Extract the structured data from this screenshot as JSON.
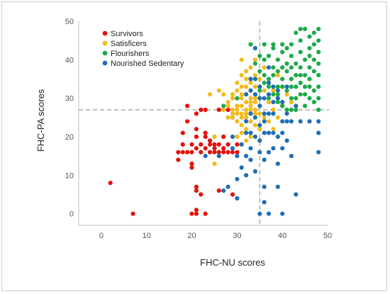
{
  "chart_data": {
    "type": "scatter",
    "xlabel": "FHC-NU scores",
    "ylabel": "FHC-PA scores",
    "xlim": [
      -5,
      50
    ],
    "ylim": [
      -3,
      50
    ],
    "x_ticks": [
      "0",
      "10",
      "20",
      "30",
      "40",
      "50"
    ],
    "y_ticks": [
      "0",
      "10",
      "20",
      "30",
      "40",
      "50"
    ],
    "reference_lines": {
      "x": 35,
      "y": 27,
      "style": "dashed",
      "color": "#999999"
    },
    "legend_position": "top-left",
    "series": [
      {
        "name": "Survivors",
        "color": "#e3120b",
        "points": [
          [
            2,
            8
          ],
          [
            7,
            0
          ],
          [
            17,
            14
          ],
          [
            17,
            16
          ],
          [
            18,
            16
          ],
          [
            18,
            18
          ],
          [
            18,
            21
          ],
          [
            19,
            16
          ],
          [
            19,
            28
          ],
          [
            19,
            24
          ],
          [
            20,
            16
          ],
          [
            20,
            13
          ],
          [
            20,
            12
          ],
          [
            20,
            18
          ],
          [
            21,
            20
          ],
          [
            21,
            17
          ],
          [
            21,
            7
          ],
          [
            21,
            6
          ],
          [
            21,
            1
          ],
          [
            20,
            0
          ],
          [
            21,
            0
          ],
          [
            21,
            22
          ],
          [
            21,
            26
          ],
          [
            22,
            16
          ],
          [
            22,
            18
          ],
          [
            22,
            27
          ],
          [
            22,
            5
          ],
          [
            23,
            0
          ],
          [
            23,
            20
          ],
          [
            23,
            21
          ],
          [
            23,
            17
          ],
          [
            23,
            27
          ],
          [
            24,
            18
          ],
          [
            24,
            16
          ],
          [
            24,
            19
          ],
          [
            25,
            18
          ],
          [
            25,
            16
          ],
          [
            25,
            17
          ],
          [
            26,
            16
          ],
          [
            26,
            18
          ],
          [
            26,
            27
          ],
          [
            27,
            17
          ],
          [
            27,
            20
          ],
          [
            27,
            16
          ],
          [
            28,
            18
          ],
          [
            28,
            16
          ],
          [
            28,
            27
          ],
          [
            29,
            5
          ],
          [
            29,
            25
          ],
          [
            29,
            16
          ],
          [
            30,
            16
          ],
          [
            30,
            18
          ],
          [
            26,
            6
          ]
        ]
      },
      {
        "name": "Satisficers",
        "color": "#f2bb1d",
        "points": [
          [
            24,
            31
          ],
          [
            25,
            20
          ],
          [
            25,
            13
          ],
          [
            26,
            32
          ],
          [
            27,
            31
          ],
          [
            27,
            27
          ],
          [
            28,
            28
          ],
          [
            28,
            29
          ],
          [
            29,
            30
          ],
          [
            29,
            25
          ],
          [
            29,
            31
          ],
          [
            29,
            26
          ],
          [
            30,
            27
          ],
          [
            30,
            28
          ],
          [
            30,
            32
          ],
          [
            30,
            34
          ],
          [
            30,
            20
          ],
          [
            30,
            24
          ],
          [
            31,
            26
          ],
          [
            31,
            28
          ],
          [
            31,
            30
          ],
          [
            31,
            33
          ],
          [
            31,
            36
          ],
          [
            31,
            40
          ],
          [
            31,
            21
          ],
          [
            31,
            23
          ],
          [
            32,
            25
          ],
          [
            32,
            27
          ],
          [
            32,
            29
          ],
          [
            32,
            31
          ],
          [
            32,
            35
          ],
          [
            32,
            37
          ],
          [
            32,
            22
          ],
          [
            32,
            19
          ],
          [
            33,
            24
          ],
          [
            33,
            28
          ],
          [
            33,
            26
          ],
          [
            33,
            30
          ],
          [
            33,
            34
          ],
          [
            33,
            32
          ],
          [
            33,
            38
          ],
          [
            33,
            20
          ],
          [
            34,
            25
          ],
          [
            34,
            27
          ],
          [
            34,
            29
          ],
          [
            34,
            31
          ],
          [
            34,
            33
          ],
          [
            34,
            23
          ],
          [
            34,
            36
          ],
          [
            34,
            40
          ],
          [
            35,
            22
          ],
          [
            35,
            26
          ],
          [
            35,
            28
          ],
          [
            35,
            30
          ],
          [
            35,
            35
          ],
          [
            36,
            25
          ],
          [
            36,
            32
          ],
          [
            36,
            38
          ],
          [
            37,
            29
          ],
          [
            37,
            24
          ],
          [
            37,
            34
          ],
          [
            38,
            27
          ],
          [
            38,
            32
          ],
          [
            38,
            22
          ],
          [
            39,
            30
          ],
          [
            39,
            36
          ],
          [
            39,
            25
          ],
          [
            40,
            33
          ],
          [
            40,
            28
          ],
          [
            41,
            31
          ],
          [
            42,
            29
          ],
          [
            30,
            26
          ],
          [
            31,
            25
          ],
          [
            32,
            26
          ],
          [
            33,
            27
          ],
          [
            34,
            26
          ],
          [
            29,
            27
          ],
          [
            28,
            25
          ],
          [
            30,
            30
          ],
          [
            31,
            31
          ],
          [
            32,
            33
          ],
          [
            33,
            29
          ],
          [
            34,
            30
          ],
          [
            35,
            33
          ]
        ]
      },
      {
        "name": "Flourishers",
        "color": "#1faa4a",
        "points": [
          [
            27,
            28
          ],
          [
            30,
            30
          ],
          [
            33,
            44
          ],
          [
            35,
            41
          ],
          [
            35,
            37
          ],
          [
            36,
            40
          ],
          [
            36,
            36
          ],
          [
            37,
            41
          ],
          [
            37,
            35
          ],
          [
            37,
            33
          ],
          [
            38,
            38
          ],
          [
            38,
            43
          ],
          [
            38,
            31
          ],
          [
            38,
            36
          ],
          [
            39,
            33
          ],
          [
            39,
            40
          ],
          [
            39,
            37
          ],
          [
            39,
            31
          ],
          [
            40,
            33
          ],
          [
            40,
            35
          ],
          [
            40,
            42
          ],
          [
            40,
            38
          ],
          [
            40,
            28
          ],
          [
            41,
            37
          ],
          [
            41,
            39
          ],
          [
            41,
            43
          ],
          [
            41,
            32
          ],
          [
            42,
            33
          ],
          [
            42,
            35
          ],
          [
            42,
            41
          ],
          [
            42,
            30
          ],
          [
            42,
            38
          ],
          [
            43,
            47
          ],
          [
            43,
            39
          ],
          [
            43,
            36
          ],
          [
            43,
            30
          ],
          [
            43,
            27
          ],
          [
            44,
            45
          ],
          [
            44,
            42
          ],
          [
            44,
            38
          ],
          [
            44,
            34
          ],
          [
            44,
            31
          ],
          [
            45,
            48
          ],
          [
            45,
            40
          ],
          [
            45,
            36
          ],
          [
            45,
            33
          ],
          [
            45,
            28
          ],
          [
            46,
            43
          ],
          [
            46,
            41
          ],
          [
            46,
            38
          ],
          [
            46,
            35
          ],
          [
            46,
            30
          ],
          [
            47,
            44
          ],
          [
            47,
            47
          ],
          [
            47,
            37
          ],
          [
            47,
            32
          ],
          [
            47,
            29
          ],
          [
            48,
            48
          ],
          [
            48,
            45
          ],
          [
            48,
            42
          ],
          [
            48,
            39
          ],
          [
            48,
            36
          ],
          [
            48,
            33
          ],
          [
            48,
            30
          ],
          [
            48,
            27
          ],
          [
            46,
            46
          ],
          [
            44,
            48
          ],
          [
            42,
            44
          ],
          [
            40,
            44
          ],
          [
            38,
            44
          ],
          [
            36,
            44
          ],
          [
            34,
            39
          ],
          [
            36,
            34
          ],
          [
            39,
            29
          ],
          [
            41,
            27
          ],
          [
            43,
            33
          ],
          [
            45,
            31
          ],
          [
            47,
            40
          ],
          [
            46,
            33
          ],
          [
            44,
            36
          ],
          [
            42,
            27
          ],
          [
            37,
            30
          ],
          [
            35,
            32
          ]
        ]
      },
      {
        "name": "Nourished Sedentary",
        "color": "#1f6fb5",
        "points": [
          [
            23,
            15
          ],
          [
            26,
            15
          ],
          [
            27,
            6
          ],
          [
            28,
            7
          ],
          [
            29,
            20
          ],
          [
            29,
            17
          ],
          [
            30,
            15
          ],
          [
            30,
            9
          ],
          [
            30,
            4
          ],
          [
            31,
            12
          ],
          [
            31,
            18
          ],
          [
            32,
            21
          ],
          [
            32,
            15
          ],
          [
            32,
            24
          ],
          [
            32,
            10
          ],
          [
            33,
            21
          ],
          [
            33,
            35
          ],
          [
            33,
            32
          ],
          [
            33,
            17
          ],
          [
            33,
            14
          ],
          [
            34,
            11
          ],
          [
            34,
            25
          ],
          [
            34,
            35
          ],
          [
            34,
            20
          ],
          [
            35,
            0
          ],
          [
            35,
            23
          ],
          [
            35,
            28
          ],
          [
            35,
            30
          ],
          [
            35,
            33
          ],
          [
            35,
            19
          ],
          [
            35,
            16
          ],
          [
            36,
            26
          ],
          [
            36,
            21
          ],
          [
            36,
            24
          ],
          [
            36,
            7
          ],
          [
            36,
            3
          ],
          [
            36,
            14
          ],
          [
            37,
            26
          ],
          [
            37,
            21
          ],
          [
            37,
            16
          ],
          [
            37,
            31
          ],
          [
            37,
            34
          ],
          [
            37,
            0
          ],
          [
            38,
            29
          ],
          [
            38,
            26
          ],
          [
            38,
            17
          ],
          [
            38,
            21
          ],
          [
            39,
            32
          ],
          [
            39,
            30
          ],
          [
            39,
            20
          ],
          [
            39,
            13
          ],
          [
            39,
            7
          ],
          [
            40,
            29
          ],
          [
            40,
            24
          ],
          [
            40,
            21
          ],
          [
            40,
            17
          ],
          [
            40,
            0
          ],
          [
            41,
            26
          ],
          [
            41,
            33
          ],
          [
            41,
            24
          ],
          [
            41,
            19
          ],
          [
            42,
            24
          ],
          [
            42,
            15
          ],
          [
            43,
            28
          ],
          [
            43,
            5
          ],
          [
            44,
            24
          ],
          [
            46,
            24
          ],
          [
            48,
            24
          ],
          [
            48,
            21
          ],
          [
            48,
            16
          ],
          [
            34,
            43
          ],
          [
            34,
            31
          ],
          [
            36,
            30
          ],
          [
            38,
            33
          ],
          [
            37,
            38
          ],
          [
            32,
            31
          ],
          [
            33,
            26
          ]
        ]
      }
    ]
  }
}
